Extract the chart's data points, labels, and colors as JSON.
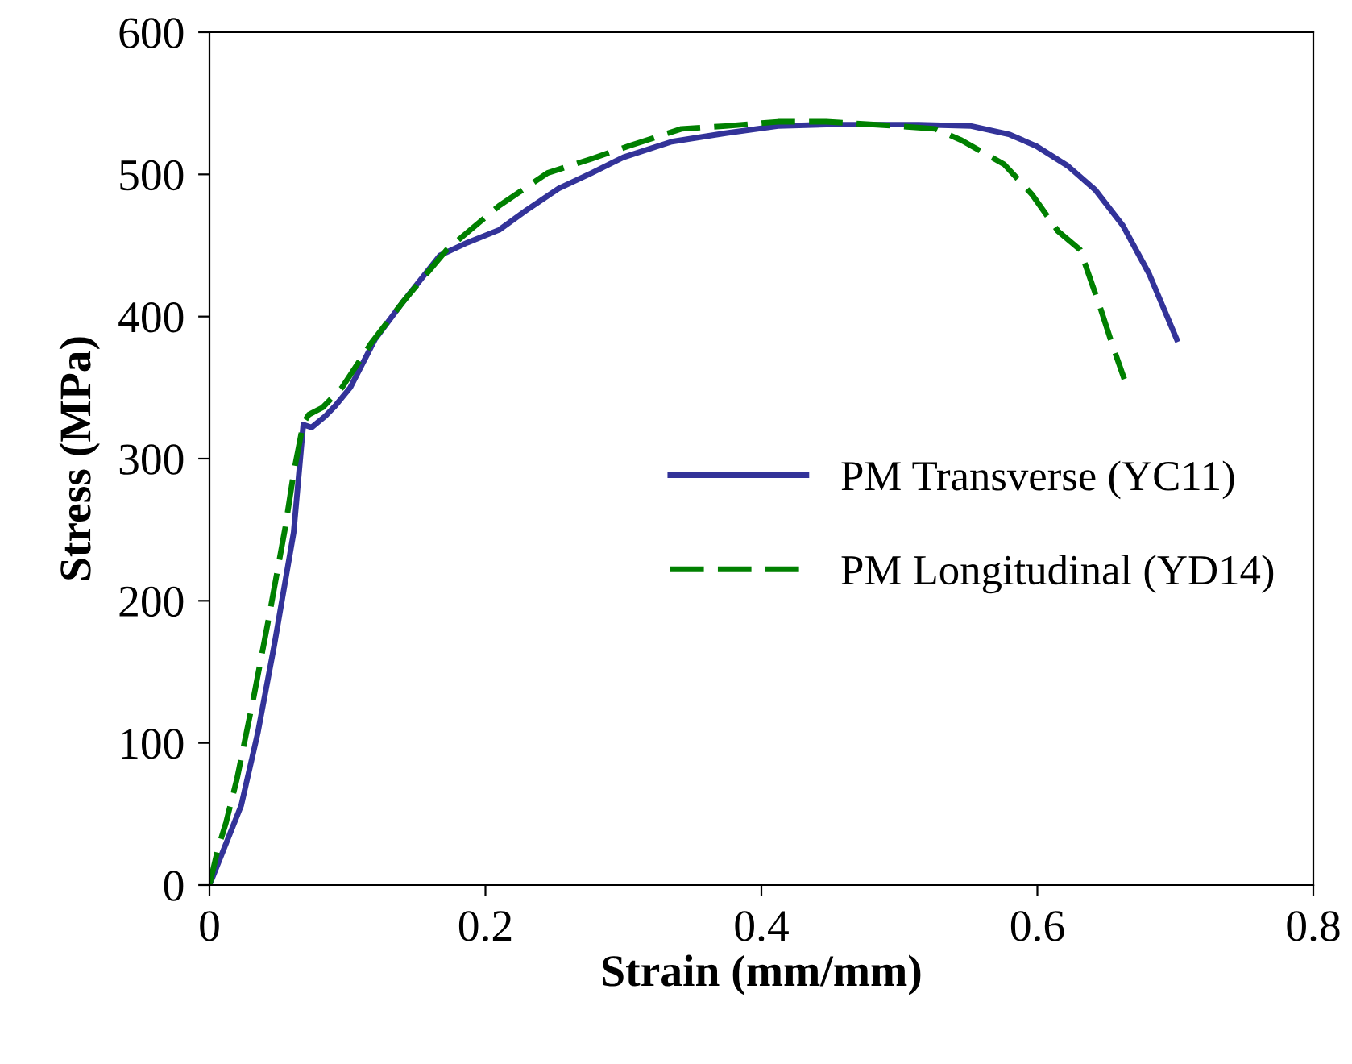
{
  "chart_data": {
    "type": "line",
    "xlabel": "Strain (mm/mm)",
    "ylabel": "Stress (MPa)",
    "xlim": [
      0,
      0.8
    ],
    "ylim": [
      0,
      600
    ],
    "xticks": [
      0,
      {
        "value": 0.2,
        "label": "0.2"
      },
      {
        "value": 0.4,
        "label": "0.4"
      },
      {
        "value": 0.6,
        "label": "0.6"
      },
      {
        "value": 0.8,
        "label": "0.8"
      }
    ],
    "yticks": [
      0,
      100,
      200,
      300,
      400,
      500,
      600
    ],
    "grid": false,
    "legend": "right",
    "series": [
      {
        "name": "PM Transverse (YC11)",
        "color": "#333399",
        "line_style": "solid",
        "x": [
          0,
          0.023,
          0.035,
          0.047,
          0.061,
          0.068,
          0.074,
          0.084,
          0.091,
          0.102,
          0.12,
          0.14,
          0.167,
          0.187,
          0.21,
          0.23,
          0.253,
          0.277,
          0.3,
          0.335,
          0.374,
          0.412,
          0.447,
          0.514,
          0.552,
          0.58,
          0.599,
          0.622,
          0.642,
          0.662,
          0.681,
          0.701
        ],
        "values": [
          0,
          56,
          107,
          169,
          248,
          324,
          322,
          330,
          337,
          350,
          384,
          410,
          443,
          452,
          461,
          475,
          490,
          501,
          512,
          523,
          529,
          534,
          535,
          535,
          534,
          528,
          520,
          506,
          489,
          464,
          430,
          384
        ]
      },
      {
        "name": "PM Longitudinal (YD14)",
        "color": "#008000",
        "line_style": "dashed",
        "x": [
          0,
          0.006,
          0.012,
          0.02,
          0.032,
          0.043,
          0.055,
          0.061,
          0.068,
          0.072,
          0.082,
          0.096,
          0.117,
          0.14,
          0.172,
          0.21,
          0.245,
          0.277,
          0.304,
          0.342,
          0.374,
          0.412,
          0.447,
          0.499,
          0.526,
          0.545,
          0.576,
          0.596,
          0.615,
          0.631,
          0.646,
          0.654,
          0.663
        ],
        "values": [
          0,
          25,
          44,
          75,
          132,
          188,
          252,
          290,
          325,
          331,
          336,
          350,
          381,
          410,
          447,
          478,
          501,
          511,
          520,
          532,
          534,
          537,
          537,
          534,
          532,
          524,
          507,
          486,
          460,
          447,
          405,
          381,
          356
        ]
      }
    ]
  }
}
